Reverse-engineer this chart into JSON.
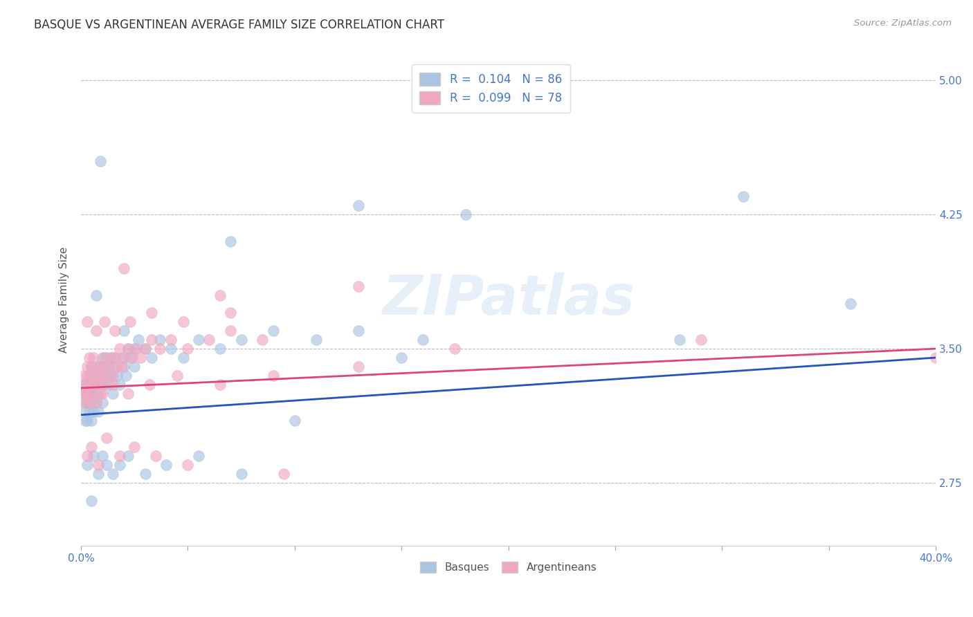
{
  "title": "BASQUE VS ARGENTINEAN AVERAGE FAMILY SIZE CORRELATION CHART",
  "source": "Source: ZipAtlas.com",
  "ylabel": "Average Family Size",
  "yticks": [
    2.75,
    3.5,
    4.25,
    5.0
  ],
  "xmin": 0.0,
  "xmax": 0.4,
  "ymin": 2.4,
  "ymax": 5.15,
  "basque_color": "#aac4e2",
  "argentinean_color": "#f0a8c0",
  "basque_line_color": "#2255bb",
  "argentinean_line_color": "#dd4477",
  "basque_R": "0.104",
  "basque_N": "86",
  "argentinean_R": "0.099",
  "argentinean_N": "78",
  "legend_label_basque": "Basques",
  "legend_label_argentinean": "Argentineans",
  "title_color": "#333333",
  "axis_color": "#4477cc",
  "grid_color": "#bbbbcc",
  "watermark": "ZIPatlas",
  "basque_line_x0": 0.0,
  "basque_line_y0": 3.13,
  "basque_line_x1": 0.4,
  "basque_line_y1": 3.45,
  "arg_line_x0": 0.0,
  "arg_line_y0": 3.28,
  "arg_line_x1": 0.4,
  "arg_line_y1": 3.5,
  "basque_x": [
    0.001,
    0.001,
    0.002,
    0.002,
    0.002,
    0.003,
    0.003,
    0.003,
    0.003,
    0.004,
    0.004,
    0.004,
    0.004,
    0.005,
    0.005,
    0.005,
    0.005,
    0.005,
    0.006,
    0.006,
    0.006,
    0.007,
    0.007,
    0.007,
    0.008,
    0.008,
    0.008,
    0.009,
    0.009,
    0.01,
    0.01,
    0.01,
    0.011,
    0.011,
    0.012,
    0.012,
    0.013,
    0.013,
    0.014,
    0.015,
    0.015,
    0.016,
    0.017,
    0.018,
    0.019,
    0.02,
    0.021,
    0.022,
    0.023,
    0.025,
    0.027,
    0.03,
    0.033,
    0.037,
    0.042,
    0.048,
    0.055,
    0.065,
    0.075,
    0.09,
    0.11,
    0.13,
    0.16,
    0.003,
    0.006,
    0.008,
    0.01,
    0.012,
    0.015,
    0.018,
    0.022,
    0.03,
    0.04,
    0.055,
    0.075,
    0.1,
    0.28,
    0.31,
    0.36,
    0.02,
    0.025,
    0.07,
    0.15,
    0.007,
    0.005,
    0.18,
    0.009,
    0.13
  ],
  "basque_y": [
    3.2,
    3.3,
    3.15,
    3.25,
    3.1,
    3.25,
    3.1,
    3.2,
    3.3,
    3.3,
    3.15,
    3.25,
    3.35,
    3.3,
    3.2,
    3.1,
    3.4,
    3.25,
    3.35,
    3.25,
    3.15,
    3.3,
    3.2,
    3.4,
    3.35,
    3.25,
    3.15,
    3.4,
    3.3,
    3.35,
    3.2,
    3.45,
    3.3,
    3.4,
    3.35,
    3.45,
    3.3,
    3.4,
    3.35,
    3.45,
    3.25,
    3.4,
    3.35,
    3.3,
    3.45,
    3.4,
    3.35,
    3.5,
    3.45,
    3.4,
    3.55,
    3.5,
    3.45,
    3.55,
    3.5,
    3.45,
    3.55,
    3.5,
    3.55,
    3.6,
    3.55,
    3.6,
    3.55,
    2.85,
    2.9,
    2.8,
    2.9,
    2.85,
    2.8,
    2.85,
    2.9,
    2.8,
    2.85,
    2.9,
    2.8,
    3.1,
    3.55,
    4.35,
    3.75,
    3.6,
    3.5,
    4.1,
    3.45,
    3.8,
    2.65,
    4.25,
    4.55,
    4.3
  ],
  "argentinean_x": [
    0.001,
    0.001,
    0.002,
    0.002,
    0.003,
    0.003,
    0.003,
    0.004,
    0.004,
    0.004,
    0.005,
    0.005,
    0.005,
    0.006,
    0.006,
    0.007,
    0.007,
    0.008,
    0.008,
    0.009,
    0.009,
    0.01,
    0.01,
    0.011,
    0.012,
    0.013,
    0.014,
    0.015,
    0.016,
    0.017,
    0.018,
    0.019,
    0.02,
    0.022,
    0.024,
    0.026,
    0.028,
    0.03,
    0.033,
    0.037,
    0.042,
    0.05,
    0.06,
    0.07,
    0.085,
    0.003,
    0.005,
    0.008,
    0.012,
    0.018,
    0.025,
    0.035,
    0.05,
    0.003,
    0.007,
    0.011,
    0.016,
    0.023,
    0.033,
    0.048,
    0.07,
    0.003,
    0.006,
    0.01,
    0.015,
    0.022,
    0.032,
    0.045,
    0.065,
    0.09,
    0.13,
    0.175,
    0.29,
    0.13,
    0.02,
    0.065,
    0.4,
    0.095
  ],
  "argentinean_y": [
    3.35,
    3.25,
    3.3,
    3.2,
    3.35,
    3.25,
    3.4,
    3.3,
    3.45,
    3.2,
    3.35,
    3.25,
    3.4,
    3.3,
    3.45,
    3.35,
    3.2,
    3.4,
    3.3,
    3.35,
    3.25,
    3.4,
    3.3,
    3.45,
    3.35,
    3.4,
    3.45,
    3.35,
    3.45,
    3.4,
    3.5,
    3.4,
    3.45,
    3.5,
    3.45,
    3.5,
    3.45,
    3.5,
    3.55,
    3.5,
    3.55,
    3.5,
    3.55,
    3.6,
    3.55,
    2.9,
    2.95,
    2.85,
    3.0,
    2.9,
    2.95,
    2.9,
    2.85,
    3.65,
    3.6,
    3.65,
    3.6,
    3.65,
    3.7,
    3.65,
    3.7,
    3.25,
    3.3,
    3.25,
    3.3,
    3.25,
    3.3,
    3.35,
    3.3,
    3.35,
    3.4,
    3.5,
    3.55,
    3.85,
    3.95,
    3.8,
    3.45,
    2.8
  ]
}
